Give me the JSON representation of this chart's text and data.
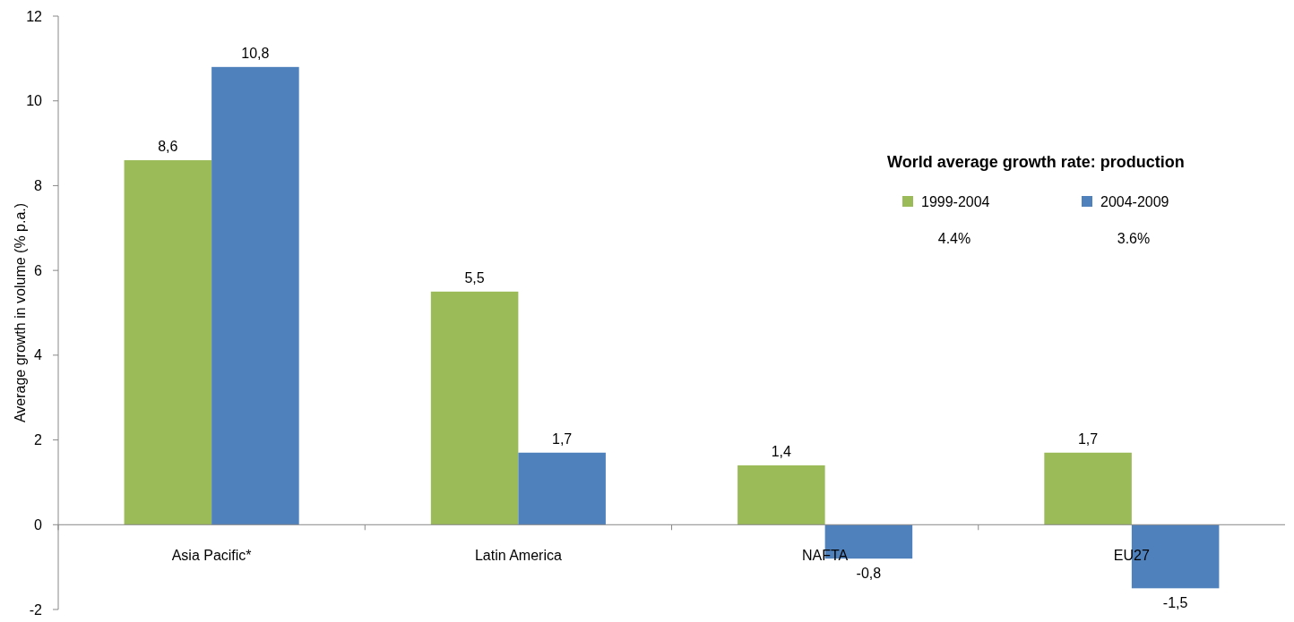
{
  "chart_data": {
    "type": "bar",
    "ylabel": "Average growth in volume (% p.a.)",
    "legend_title": "World average growth rate: production",
    "categories": [
      "Asia Pacific*",
      "Latin America",
      "NAFTA",
      "EU27"
    ],
    "series": [
      {
        "name": "1999-2004",
        "color": "#9bbb59",
        "values": [
          8.6,
          5.5,
          1.4,
          1.7
        ],
        "value_labels": [
          "8,6",
          "5,5",
          "1,4",
          "1,7"
        ]
      },
      {
        "name": "2004-2009",
        "color": "#4f81bd",
        "values": [
          10.8,
          1.7,
          -0.8,
          -1.5
        ],
        "value_labels": [
          "10,8",
          "1,7",
          "-0,8",
          "-1,5"
        ]
      }
    ],
    "annotations": [
      "4.4%",
      "3.6%"
    ],
    "ylim": [
      -2,
      12
    ],
    "yticks": [
      -2,
      0,
      2,
      4,
      6,
      8,
      10,
      12
    ],
    "grid": false,
    "legend": "top right"
  }
}
